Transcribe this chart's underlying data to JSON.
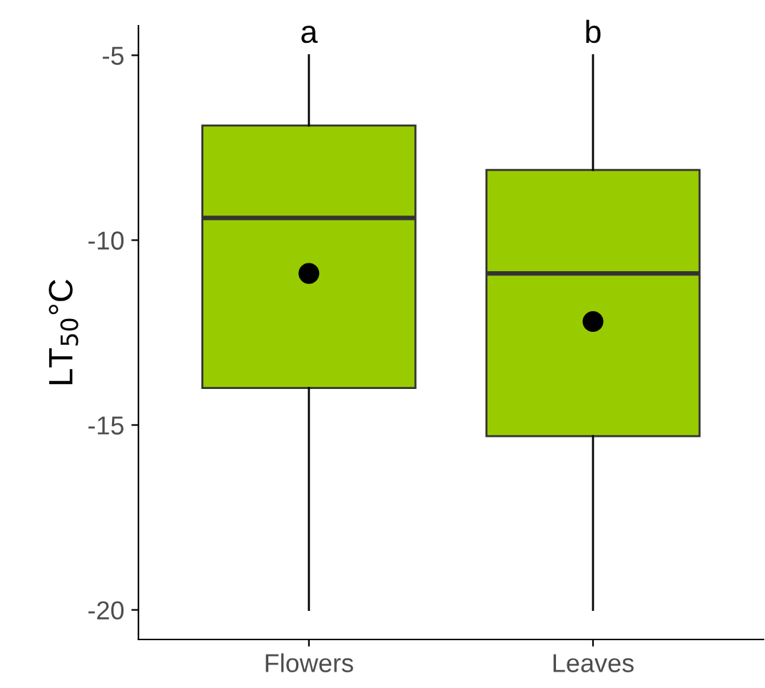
{
  "chart_data": {
    "type": "box",
    "ylabel": "LT$_{50}$°C",
    "categories": [
      "Flowers",
      "Leaves"
    ],
    "boxes": [
      {
        "low": -20,
        "q1": -14.0,
        "median": -9.4,
        "q3": -6.9,
        "high": -5
      },
      {
        "low": -20,
        "q1": -15.3,
        "median": -10.9,
        "q3": -8.1,
        "high": -5
      }
    ],
    "color": "#99cc00",
    "series": [
      {
        "type": "scatter",
        "x": [
          "Flowers",
          "Leaves"
        ],
        "values": [
          -10.9,
          -12.2
        ],
        "color": "#000000"
      }
    ],
    "annotations": [
      "a",
      "b"
    ],
    "ylim": [
      -20.8,
      -4.2
    ],
    "yticks": [
      {
        "value": -20,
        "label": "-20"
      },
      {
        "value": -15,
        "label": "-15"
      },
      {
        "value": -10,
        "label": "-10"
      },
      {
        "value": -5,
        "label": "-5"
      }
    ],
    "grid": false,
    "legend": false
  }
}
